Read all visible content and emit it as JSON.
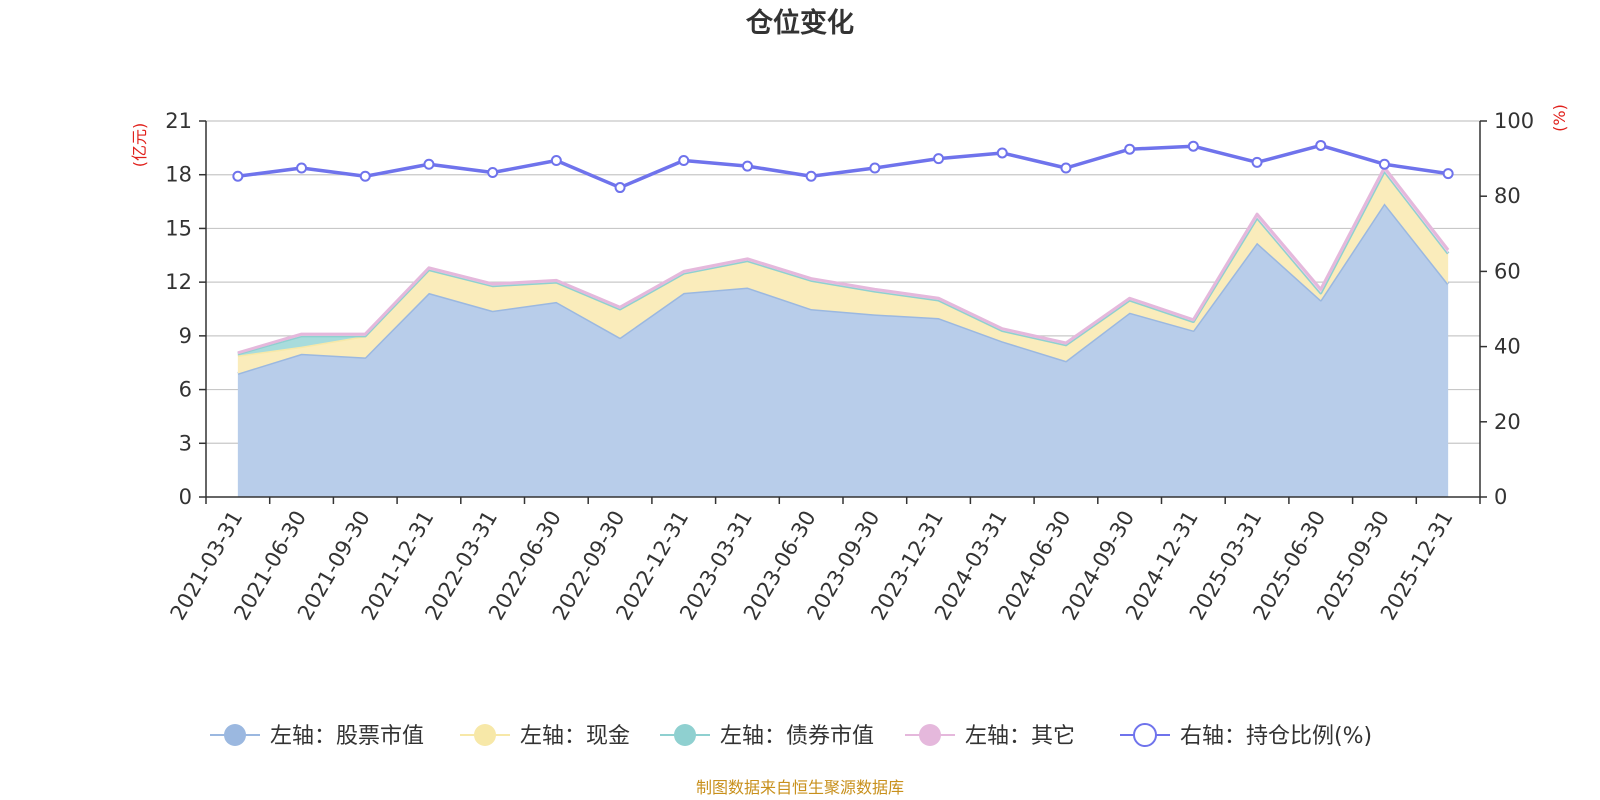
{
  "chart_data": {
    "type": "area",
    "title": "仓位变化",
    "source_note": "制图数据来自恒生聚源数据库",
    "left_axis": {
      "unit_label": "(亿元)",
      "ylim": [
        0,
        21
      ],
      "ticks": [
        "0",
        "3",
        "6",
        "9",
        "12",
        "15",
        "18",
        "21"
      ]
    },
    "right_axis": {
      "unit_label": "(%)",
      "ylim": [
        0,
        100
      ],
      "ticks": [
        "0",
        "20",
        "40",
        "60",
        "80",
        "100"
      ]
    },
    "categories": [
      "2021-03-31",
      "2021-06-30",
      "2021-09-30",
      "2021-12-31",
      "2022-03-31",
      "2022-06-30",
      "2022-09-30",
      "2022-12-31",
      "2023-03-31",
      "2023-06-30",
      "2023-09-30",
      "2023-12-31",
      "2024-03-31",
      "2024-06-30",
      "2024-09-30",
      "2024-12-31",
      "2025-03-31",
      "2025-06-30",
      "2025-09-30",
      "2025-12-31"
    ],
    "series": [
      {
        "name": "左轴：股票市值",
        "axis": "left",
        "stacked": true,
        "color": "#9bb8e0",
        "fill": "#b8cdea",
        "values": [
          6.9,
          8.0,
          7.8,
          11.4,
          10.4,
          10.9,
          8.9,
          11.4,
          11.7,
          10.5,
          10.2,
          10.0,
          8.7,
          7.6,
          10.3,
          9.3,
          14.2,
          11.0,
          16.4,
          11.9
        ]
      },
      {
        "name": "左轴：现金",
        "axis": "left",
        "stacked": true,
        "color": "#f7e8a8",
        "fill": "#faecbb",
        "values": [
          1.0,
          0.4,
          1.2,
          1.3,
          1.4,
          1.1,
          1.6,
          1.1,
          1.5,
          1.6,
          1.3,
          1.0,
          0.6,
          0.9,
          0.7,
          0.5,
          1.4,
          0.4,
          1.8,
          1.7
        ]
      },
      {
        "name": "左轴：债券市值",
        "axis": "left",
        "stacked": true,
        "color": "#8fd0d0",
        "fill": "#a8dcdc",
        "values": [
          0.1,
          0.6,
          0.0,
          0.0,
          0.0,
          0.0,
          0.0,
          0.0,
          0.0,
          0.0,
          0.0,
          0.0,
          0.0,
          0.0,
          0.0,
          0.0,
          0.0,
          0.0,
          0.0,
          0.0
        ]
      },
      {
        "name": "左轴：其它",
        "axis": "left",
        "stacked": true,
        "color": "#e5b8dc",
        "fill": "#efcde8",
        "values": [
          0.05,
          0.1,
          0.1,
          0.1,
          0.1,
          0.1,
          0.1,
          0.1,
          0.1,
          0.1,
          0.1,
          0.1,
          0.1,
          0.1,
          0.1,
          0.1,
          0.2,
          0.2,
          0.2,
          0.2
        ]
      },
      {
        "name": "右轴：持仓比例(%)",
        "axis": "right",
        "type": "line",
        "color": "#6f73ec",
        "values": [
          85.3,
          87.5,
          85.3,
          88.5,
          86.3,
          89.5,
          82.3,
          89.5,
          88.0,
          85.3,
          87.5,
          90.0,
          91.5,
          87.5,
          92.5,
          93.3,
          89.0,
          93.5,
          88.5,
          86.0
        ]
      }
    ]
  }
}
